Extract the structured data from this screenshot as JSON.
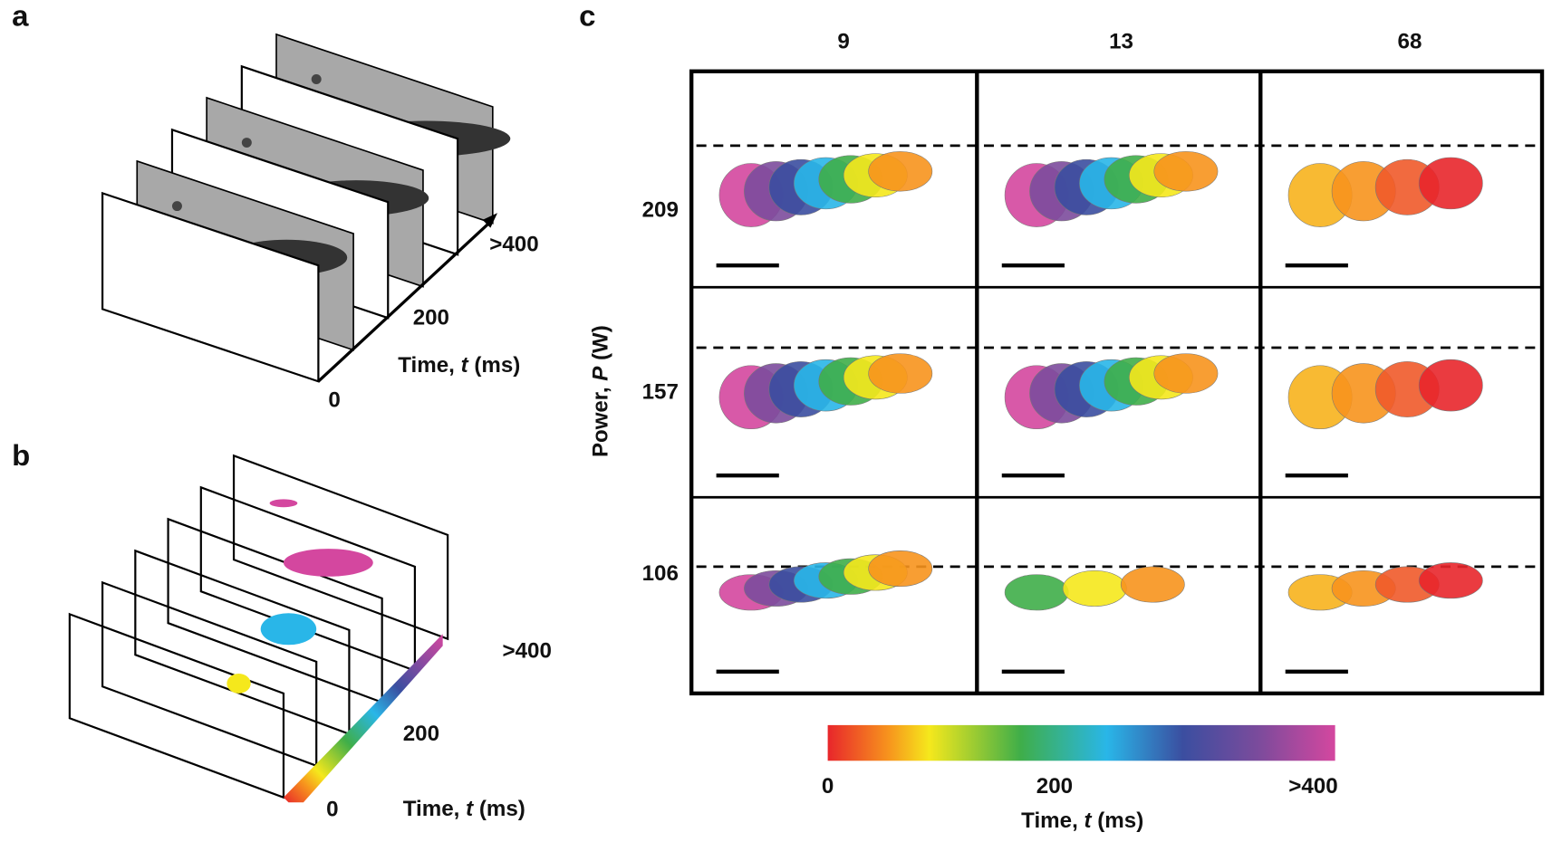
{
  "panel_a": {
    "label": "a",
    "ticks": [
      ">400",
      "200",
      "0"
    ],
    "axis_label": {
      "prefix": "Time, ",
      "var": "t",
      "suffix": " (ms)"
    }
  },
  "panel_b": {
    "label": "b",
    "ticks": [
      ">400",
      "200",
      "0"
    ],
    "axis_label": {
      "prefix": "Time, ",
      "var": "t",
      "suffix": " (ms)"
    }
  },
  "panel_c": {
    "label": "c",
    "columns": [
      "9",
      "13",
      "68"
    ],
    "rows": [
      "209",
      "157",
      "106"
    ],
    "y_label": {
      "prefix": "Power, ",
      "var": "P",
      "suffix": " (W)"
    },
    "colorbar": {
      "ticks": [
        "0",
        "200",
        ">400"
      ],
      "label": {
        "prefix": "Time, ",
        "var": "t",
        "suffix": " (ms)"
      }
    }
  }
}
